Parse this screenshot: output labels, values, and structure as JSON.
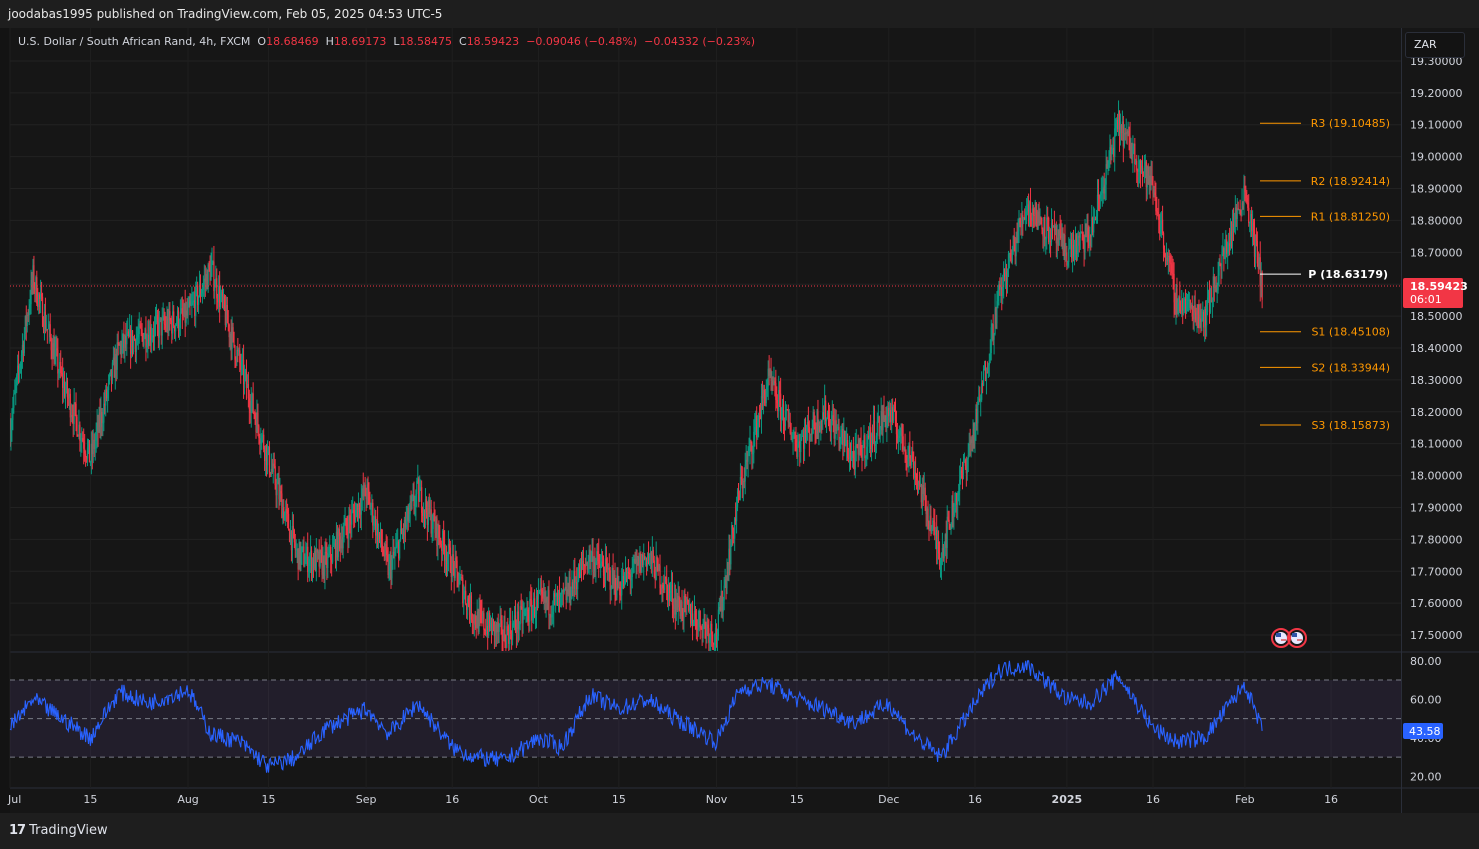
{
  "header": {
    "published_by": "joodabas1995 published on TradingView.com, Feb 05, 2025 04:53 UTC-5"
  },
  "legend": {
    "symbol": "U.S. Dollar / South African Rand, 4h, FXCM",
    "open_label": "O",
    "open": "18.68469",
    "high_label": "H",
    "high": "18.69173",
    "low_label": "L",
    "low": "18.58475",
    "close_label": "C",
    "close": "18.59423",
    "change": "−0.09046 (−0.48%)",
    "change2": "−0.04332 (−0.23%)"
  },
  "currency_button": "ZAR",
  "last_price": {
    "value": "18.59423",
    "countdown": "06:01"
  },
  "rsi_value": "43.58",
  "brand": "TradingView",
  "colors": {
    "up": "#089981",
    "down": "#f23645",
    "pivot": "#ff9800",
    "rsi": "#2962ff",
    "background": "#161616"
  },
  "chart_data": [
    {
      "type": "candlestick",
      "title": "U.S. Dollar / South African Rand, 4h, FXCM",
      "ylim": [
        17.45,
        19.35
      ],
      "y_ticks": [
        "19.30000",
        "19.20000",
        "19.10000",
        "19.00000",
        "18.90000",
        "18.80000",
        "18.70000",
        "18.60000",
        "18.50000",
        "18.40000",
        "18.30000",
        "18.20000",
        "18.10000",
        "18.00000",
        "17.90000",
        "17.80000",
        "17.70000",
        "17.60000",
        "17.50000"
      ],
      "x_ticks": [
        "Jul",
        "15",
        "Aug",
        "15",
        "Sep",
        "16",
        "Oct",
        "15",
        "Nov",
        "15",
        "Dec",
        "16",
        "2025",
        "16",
        "Feb",
        "16"
      ],
      "x": [
        "2024-07-01",
        "2024-07-05",
        "2024-07-10",
        "2024-07-15",
        "2024-07-20",
        "2024-07-25",
        "2024-08-01",
        "2024-08-05",
        "2024-08-10",
        "2024-08-15",
        "2024-08-20",
        "2024-08-25",
        "2024-09-01",
        "2024-09-05",
        "2024-09-10",
        "2024-09-16",
        "2024-09-20",
        "2024-09-25",
        "2024-10-01",
        "2024-10-05",
        "2024-10-10",
        "2024-10-15",
        "2024-10-20",
        "2024-10-25",
        "2024-11-01",
        "2024-11-05",
        "2024-11-10",
        "2024-11-15",
        "2024-11-20",
        "2024-11-25",
        "2024-12-01",
        "2024-12-05",
        "2024-12-10",
        "2024-12-16",
        "2024-12-20",
        "2024-12-25",
        "2025-01-01",
        "2025-01-05",
        "2025-01-10",
        "2025-01-16",
        "2025-01-20",
        "2025-01-25",
        "2025-02-01",
        "2025-02-04"
      ],
      "close": [
        18.15,
        18.62,
        18.3,
        18.05,
        18.4,
        18.45,
        18.5,
        18.65,
        18.35,
        18.05,
        17.75,
        17.72,
        17.95,
        17.7,
        17.95,
        17.72,
        17.55,
        17.5,
        17.6,
        17.6,
        17.75,
        17.65,
        17.75,
        17.6,
        17.5,
        17.95,
        18.3,
        18.1,
        18.2,
        18.05,
        18.2,
        18.05,
        17.75,
        18.15,
        18.55,
        18.85,
        18.7,
        18.75,
        19.1,
        18.9,
        18.55,
        18.5,
        18.9,
        18.59423
      ],
      "pivots": [
        {
          "label": "R3 (19.10485)",
          "value": 19.10485
        },
        {
          "label": "R2 (18.92414)",
          "value": 18.92414
        },
        {
          "label": "R1 (18.81250)",
          "value": 18.8125
        },
        {
          "label": "P (18.63179)",
          "value": 18.63179
        },
        {
          "label": "S1 (18.45108)",
          "value": 18.45108
        },
        {
          "label": "S2 (18.33944)",
          "value": 18.33944
        },
        {
          "label": "S3 (18.15873)",
          "value": 18.15873
        }
      ]
    },
    {
      "type": "line",
      "title": "",
      "ylim": [
        15,
        83
      ],
      "y_ticks": [
        "80.00",
        "60.00",
        "40.00",
        "20.00"
      ],
      "bands": [
        70,
        50,
        30
      ],
      "values": [
        45,
        60,
        50,
        40,
        64,
        58,
        65,
        42,
        38,
        25,
        30,
        45,
        55,
        42,
        58,
        35,
        30,
        28,
        40,
        35,
        62,
        55,
        60,
        50,
        38,
        65,
        68,
        60,
        55,
        48,
        58,
        42,
        30,
        58,
        75,
        78,
        60,
        58,
        72,
        45,
        38,
        40,
        68,
        43.58
      ]
    }
  ]
}
